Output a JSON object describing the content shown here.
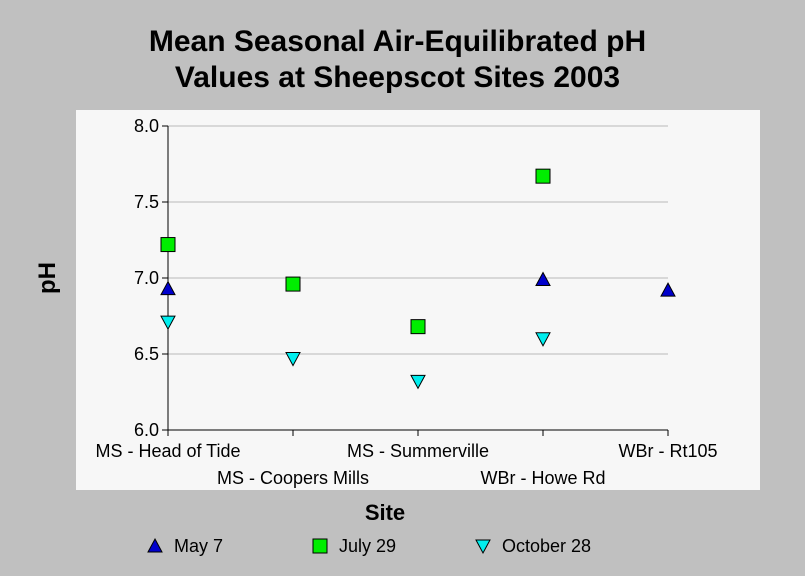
{
  "chart_data": {
    "type": "scatter",
    "title": [
      "Mean Seasonal Air-Equilibrated pH",
      "Values at Sheepscot Sites 2003"
    ],
    "xlabel": "Site",
    "ylabel": "pH",
    "categories": [
      "MS - Head of Tide",
      "MS - Coopers Mills",
      "MS - Summerville",
      "WBr - Howe Rd",
      "WBr - Rt105"
    ],
    "ylim": [
      6.0,
      8.0
    ],
    "yticks": [
      "6.0",
      "6.5",
      "7.0",
      "7.5",
      "8.0"
    ],
    "grid": "horizontal",
    "legend_position": "bottom",
    "series": [
      {
        "name": "May 7",
        "marker": "triangle-up",
        "color": "#0000cc",
        "values": [
          6.93,
          null,
          null,
          6.99,
          6.92
        ]
      },
      {
        "name": "July 29",
        "marker": "square",
        "color": "#00ee00",
        "values": [
          7.22,
          6.96,
          6.68,
          7.67,
          null
        ]
      },
      {
        "name": "October 28",
        "marker": "triangle-down",
        "color": "#00eeee",
        "values": [
          6.71,
          6.47,
          6.32,
          6.6,
          null
        ]
      }
    ]
  }
}
